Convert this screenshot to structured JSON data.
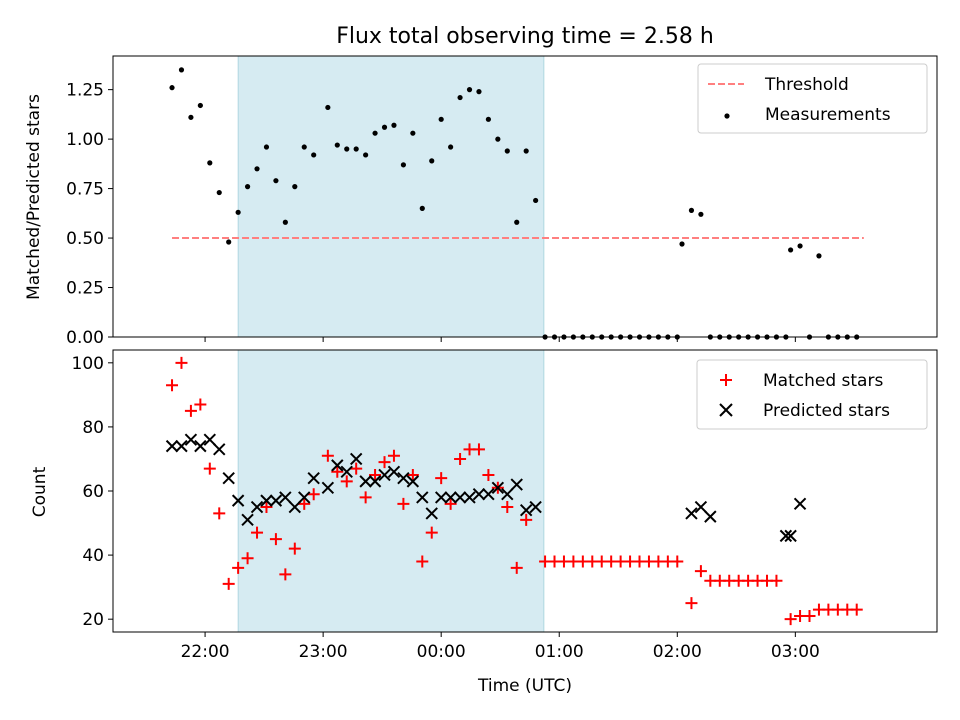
{
  "chart_data": [
    {
      "type": "scatter",
      "title": "Flux total observing time = 2.58 h",
      "xlabel": "",
      "ylabel": "Matched/Predicted stars",
      "ylim": [
        0,
        1.42
      ],
      "yticks": [
        "0.00",
        "0.25",
        "0.50",
        "0.75",
        "1.00",
        "1.25"
      ],
      "grid": false,
      "legend_position": "top-right",
      "shaded_interval_x": [
        22.28,
        24.87
      ],
      "series": [
        {
          "name": "Threshold",
          "style": "dashed-line",
          "color": "#ff7f7f",
          "x": [
            21.72,
            27.58
          ],
          "y": [
            0.5,
            0.5
          ]
        },
        {
          "name": "Measurements",
          "style": "dot",
          "color": "#000000",
          "x": [
            21.72,
            21.8,
            21.88,
            21.96,
            22.04,
            22.12,
            22.2,
            22.28,
            22.36,
            22.44,
            22.52,
            22.6,
            22.68,
            22.76,
            22.84,
            22.92,
            23.04,
            23.12,
            23.2,
            23.28,
            23.36,
            23.44,
            23.52,
            23.6,
            23.68,
            23.76,
            23.84,
            23.92,
            24.0,
            24.08,
            24.16,
            24.24,
            24.32,
            24.4,
            24.48,
            24.56,
            24.64,
            24.72,
            24.8,
            24.88,
            24.96,
            25.04,
            25.12,
            25.2,
            25.28,
            25.36,
            25.44,
            25.52,
            25.6,
            25.68,
            25.76,
            25.84,
            25.92,
            26.0,
            26.04,
            26.12,
            26.2,
            26.28,
            26.36,
            26.44,
            26.52,
            26.6,
            26.68,
            26.76,
            26.84,
            26.92,
            26.96,
            27.04,
            27.12,
            27.2,
            27.28,
            27.36,
            27.44,
            27.52
          ],
          "y": [
            1.26,
            1.35,
            1.11,
            1.17,
            0.88,
            0.73,
            0.48,
            0.63,
            0.76,
            0.85,
            0.96,
            0.79,
            0.58,
            0.76,
            0.96,
            0.92,
            1.16,
            0.97,
            0.95,
            0.95,
            0.92,
            1.03,
            1.06,
            1.07,
            0.87,
            1.03,
            0.65,
            0.89,
            1.1,
            0.96,
            1.21,
            1.25,
            1.24,
            1.1,
            1.0,
            0.94,
            0.58,
            0.94,
            0.69,
            0.0,
            0.0,
            0.0,
            0.0,
            0.0,
            0.0,
            0.0,
            0.0,
            0.0,
            0.0,
            0.0,
            0.0,
            0.0,
            0.0,
            0.0,
            0.47,
            0.64,
            0.62,
            0.0,
            0.0,
            0.0,
            0.0,
            0.0,
            0.0,
            0.0,
            0.0,
            0.0,
            0.44,
            0.46,
            0.0,
            0.41,
            0.0,
            0.0,
            0.0,
            0.0
          ]
        }
      ]
    },
    {
      "type": "scatter",
      "title": "",
      "xlabel": "Time (UTC)",
      "ylabel": "Count",
      "ylim": [
        16,
        104
      ],
      "yticks": [
        "20",
        "40",
        "60",
        "80",
        "100"
      ],
      "xlim": [
        21.22,
        28.2
      ],
      "xticks": [
        22,
        23,
        24,
        25,
        26,
        27
      ],
      "xtick_labels": [
        "22:00",
        "23:00",
        "00:00",
        "01:00",
        "02:00",
        "03:00"
      ],
      "grid": false,
      "legend_position": "top-right",
      "shaded_interval_x": [
        22.28,
        24.87
      ],
      "series": [
        {
          "name": "Matched stars",
          "style": "plus",
          "color": "#ff0000",
          "x": [
            21.72,
            21.8,
            21.88,
            21.96,
            22.04,
            22.12,
            22.2,
            22.28,
            22.36,
            22.44,
            22.52,
            22.6,
            22.68,
            22.76,
            22.84,
            22.92,
            23.04,
            23.12,
            23.2,
            23.28,
            23.36,
            23.44,
            23.52,
            23.6,
            23.68,
            23.76,
            23.84,
            23.92,
            24.0,
            24.08,
            24.16,
            24.24,
            24.32,
            24.4,
            24.48,
            24.56,
            24.64,
            24.72,
            24.88,
            24.96,
            25.04,
            25.12,
            25.2,
            25.28,
            25.36,
            25.44,
            25.52,
            25.6,
            25.68,
            25.76,
            25.84,
            25.92,
            26.0,
            26.12,
            26.2,
            26.28,
            26.36,
            26.44,
            26.52,
            26.6,
            26.68,
            26.76,
            26.84,
            26.96,
            27.04,
            27.12,
            27.2,
            27.28,
            27.36,
            27.44,
            27.52
          ],
          "y": [
            93,
            100,
            85,
            87,
            67,
            53,
            31,
            36,
            39,
            47,
            55,
            45,
            34,
            42,
            56,
            59,
            71,
            66,
            63,
            67,
            58,
            65,
            69,
            71,
            56,
            65,
            38,
            47,
            64,
            56,
            70,
            73,
            73,
            65,
            61,
            55,
            36,
            51,
            38,
            38,
            38,
            38,
            38,
            38,
            38,
            38,
            38,
            38,
            38,
            38,
            38,
            38,
            38,
            25,
            35,
            32,
            32,
            32,
            32,
            32,
            32,
            32,
            32,
            20,
            21,
            21,
            23,
            23,
            23,
            23,
            23
          ]
        },
        {
          "name": "Predicted stars",
          "style": "x",
          "color": "#000000",
          "x": [
            21.72,
            21.8,
            21.88,
            21.96,
            22.04,
            22.12,
            22.2,
            22.28,
            22.36,
            22.44,
            22.52,
            22.6,
            22.68,
            22.76,
            22.84,
            22.92,
            23.04,
            23.12,
            23.2,
            23.28,
            23.36,
            23.44,
            23.52,
            23.6,
            23.68,
            23.76,
            23.84,
            23.92,
            24.0,
            24.08,
            24.16,
            24.24,
            24.32,
            24.4,
            24.48,
            24.56,
            24.64,
            24.72,
            24.8,
            26.12,
            26.2,
            26.28,
            26.92,
            26.96,
            27.04
          ],
          "y": [
            74,
            74,
            76,
            74,
            76,
            73,
            64,
            57,
            51,
            55,
            57,
            57,
            58,
            55,
            58,
            64,
            61,
            68,
            66,
            70,
            63,
            63,
            65,
            66,
            64,
            63,
            58,
            53,
            58,
            58,
            58,
            58,
            59,
            59,
            61,
            59,
            62,
            54,
            55,
            53,
            55,
            52,
            46,
            46,
            56
          ]
        }
      ]
    }
  ]
}
